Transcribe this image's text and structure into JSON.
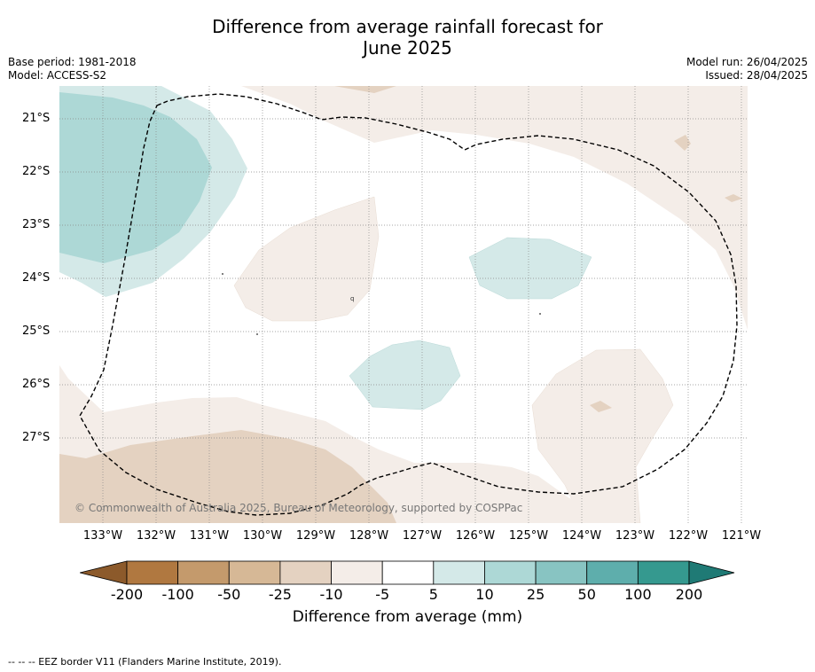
{
  "title_line1": "Difference from average rainfall forecast for",
  "title_line2": "June 2025",
  "base_period": "Base period: 1981-2018",
  "model": "Model: ACCESS-S2",
  "model_run": "Model run: 26/04/2025",
  "issued": "Issued: 28/04/2025",
  "copyright": "© Commonwealth of Australia 2025, Bureau of Meteorology, supported by COSPPac",
  "lat_labels": [
    "21°S",
    "22°S",
    "23°S",
    "24°S",
    "25°S",
    "26°S",
    "27°S"
  ],
  "lon_labels": [
    "133°W",
    "132°W",
    "131°W",
    "130°W",
    "129°W",
    "128°W",
    "127°W",
    "126°W",
    "125°W",
    "124°W",
    "123°W",
    "122°W",
    "121°W"
  ],
  "colorbar": {
    "ticks": [
      "-200",
      "-100",
      "-50",
      "-25",
      "-10",
      "-5",
      "5",
      "10",
      "25",
      "50",
      "100",
      "200"
    ],
    "colors": [
      "#8c5a2b",
      "#b07840",
      "#c49a6c",
      "#d6b896",
      "#e4d2c1",
      "#f4ede8",
      "#ffffff",
      "#d4e9e8",
      "#add8d6",
      "#88c4c2",
      "#5eaeac",
      "#35998f",
      "#1f7a75"
    ],
    "label": "Difference from average (mm)"
  },
  "footer": "--  --  -- EEZ border V11 (Flanders Marine Institute, 2019)."
}
